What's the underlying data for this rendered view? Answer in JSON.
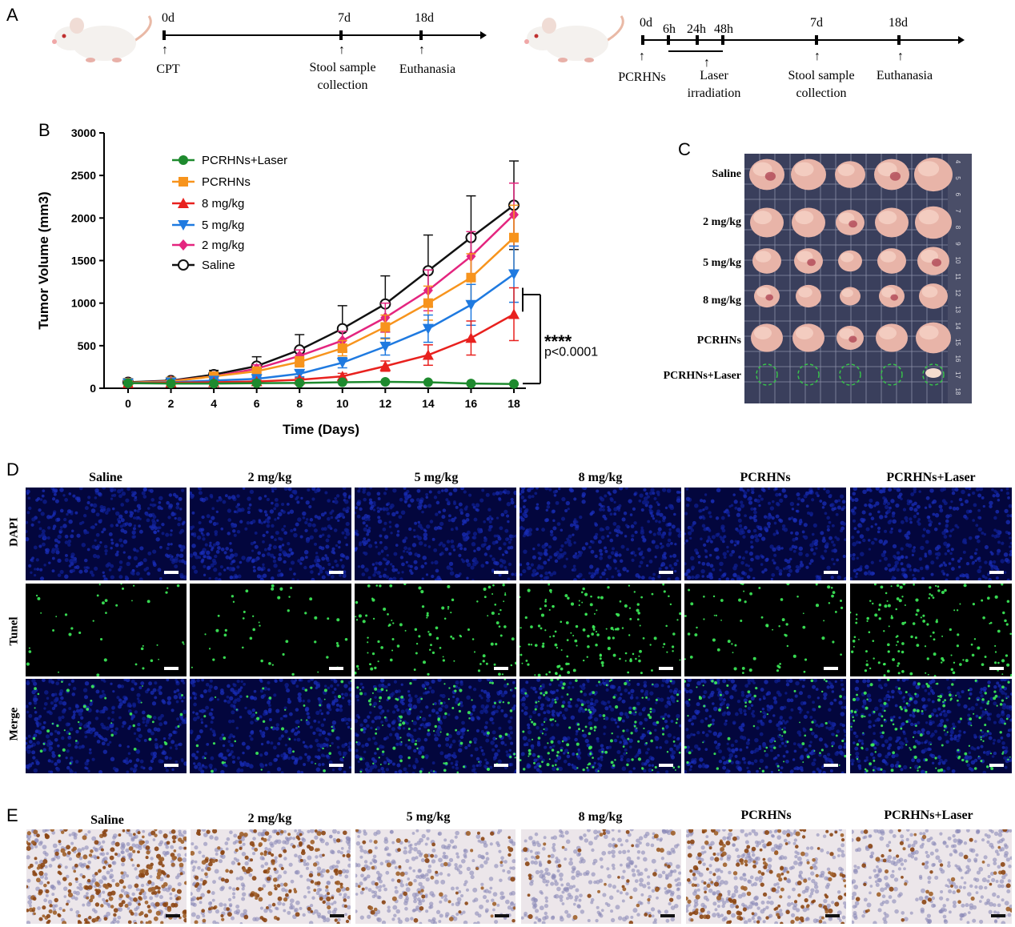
{
  "panels": {
    "a": "A",
    "b": "B",
    "c": "C",
    "d": "D",
    "e": "E"
  },
  "timeline1": {
    "ticks": [
      {
        "label": "0d",
        "below": "CPT"
      },
      {
        "label": "7d",
        "below": "Stool sample collection"
      },
      {
        "label": "18d",
        "below": "Euthanasia"
      }
    ]
  },
  "timeline2": {
    "ticks": [
      {
        "label": "0d",
        "below": "PCRHNs"
      },
      {
        "label": "6h"
      },
      {
        "label": "24h",
        "below": "Laser irradiation"
      },
      {
        "label": "48h"
      },
      {
        "label": "7d",
        "below": "Stool sample collection"
      },
      {
        "label": "18d",
        "below": "Euthanasia"
      }
    ]
  },
  "chart_data": {
    "type": "line",
    "title": "",
    "xlabel": "Time (Days)",
    "ylabel": "Tumor Volume (mm3)",
    "x": [
      0,
      2,
      4,
      6,
      8,
      10,
      12,
      14,
      16,
      18
    ],
    "xlim": [
      0,
      18
    ],
    "ylim": [
      0,
      3000
    ],
    "yticks": [
      0,
      500,
      1000,
      1500,
      2000,
      2500,
      3000
    ],
    "series": [
      {
        "name": "PCRHNs+Laser",
        "color": "#1e8a2e",
        "marker": "circle",
        "values": [
          60,
          55,
          55,
          60,
          62,
          70,
          75,
          70,
          55,
          50
        ],
        "err": [
          5,
          5,
          5,
          5,
          5,
          5,
          5,
          5,
          5,
          5
        ]
      },
      {
        "name": "PCRHNs",
        "color": "#f7941d",
        "marker": "square",
        "values": [
          65,
          80,
          140,
          200,
          310,
          470,
          720,
          1000,
          1300,
          1770
        ],
        "err": [
          10,
          15,
          25,
          40,
          60,
          90,
          140,
          200,
          280,
          380
        ]
      },
      {
        "name": "8 mg/kg",
        "color": "#e8211e",
        "marker": "triangle-up",
        "values": [
          60,
          65,
          70,
          80,
          100,
          140,
          260,
          390,
          590,
          870
        ],
        "err": [
          5,
          8,
          10,
          15,
          20,
          35,
          60,
          120,
          200,
          310
        ]
      },
      {
        "name": "5 mg/kg",
        "color": "#1f7ae0",
        "marker": "triangle-down",
        "values": [
          60,
          70,
          90,
          110,
          170,
          300,
          490,
          700,
          980,
          1340
        ],
        "err": [
          8,
          10,
          15,
          20,
          35,
          60,
          100,
          160,
          240,
          330
        ]
      },
      {
        "name": "2 mg/kg",
        "color": "#e4257f",
        "marker": "diamond",
        "values": [
          65,
          85,
          140,
          230,
          380,
          560,
          830,
          1150,
          1550,
          2040
        ],
        "err": [
          10,
          15,
          25,
          45,
          70,
          110,
          170,
          240,
          290,
          370
        ]
      },
      {
        "name": "Saline",
        "color": "#111111",
        "marker": "open-circle",
        "values": [
          70,
          90,
          160,
          260,
          450,
          700,
          990,
          1380,
          1770,
          2150
        ],
        "err": [
          10,
          20,
          50,
          110,
          180,
          270,
          330,
          420,
          490,
          520
        ]
      }
    ],
    "annotation": {
      "stars": "****",
      "p": "p<0.0001"
    }
  },
  "panel_c": {
    "rows": [
      "Saline",
      "2 mg/kg",
      "5 mg/kg",
      "8 mg/kg",
      "PCRHNs",
      "PCRHNs+Laser"
    ],
    "ruler": [
      "4",
      "5",
      "6",
      "7",
      "8",
      "9",
      "10",
      "11",
      "12",
      "13",
      "14",
      "15",
      "16",
      "17",
      "18"
    ]
  },
  "panel_d": {
    "columns": [
      "Saline",
      "2 mg/kg",
      "5 mg/kg",
      "8 mg/kg",
      "PCRHNs",
      "PCRHNs+Laser"
    ],
    "rows": [
      "DAPI",
      "Tunel",
      "Merge"
    ]
  },
  "panel_e": {
    "columns": [
      "Saline",
      "2 mg/kg",
      "5 mg/kg",
      "8 mg/kg",
      "PCRHNs",
      "PCRHNs+Laser"
    ]
  }
}
